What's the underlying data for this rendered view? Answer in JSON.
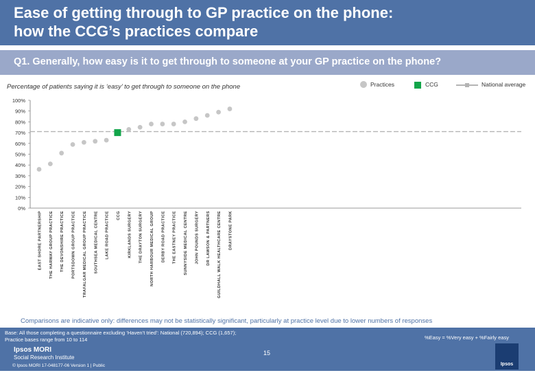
{
  "header": {
    "title_line1": "Ease of getting through to GP practice on the phone:",
    "title_line2": "how the CCG’s practices compare"
  },
  "question": "Q1. Generally, how easy is it to get through to someone at your GP practice on the phone?",
  "subtitle": "Percentage of patients saying it is ‘easy’ to get through to someone on the phone",
  "legend": {
    "practices": "Practices",
    "ccg": "CCG",
    "national": "National average"
  },
  "colors": {
    "practice": "#c6c6c6",
    "ccg": "#12a54a",
    "national": "#b4b4b4",
    "header": "#4f72a6"
  },
  "chart_data": {
    "type": "scatter",
    "y_ticks": [
      "100%",
      "90%",
      "80%",
      "70%",
      "60%",
      "50%",
      "40%",
      "30%",
      "20%",
      "10%",
      "0%"
    ],
    "ylim": [
      0,
      100
    ],
    "national_average": 71,
    "categories": [
      "EAST SHORE PARTNERSHIP",
      "THE HARWAY GROUP PRACTICE",
      "THE DEVONSHIRE PRACTICE",
      "PORTSDOWN GROUP PRACTICE",
      "TRAFALGAR MEDICAL GROUP PRACTICE",
      "SOUTHSEA MEDICAL CENTRE",
      "LAKE ROAD PRACTICE",
      "CCG",
      "KIRKLANDS SURGERY",
      "THE DRAYTON SURGERY",
      "NORTH HARBOUR MEDICAL GROUP",
      "DERBY ROAD PRACTICE",
      "THE EASTNEY PRACTICE",
      "SUNNYSIDE MEDICAL CENTRE",
      "JOHN POUNDS SURGERY",
      "DR LAWSON & PARTNERS",
      "GUILDHALL WALK HEALTHCARE CENTRE",
      "DRAYSTONE PARK"
    ],
    "values": [
      36,
      41,
      51,
      59,
      61,
      62,
      63,
      70,
      73,
      75,
      78,
      78,
      78,
      80,
      83,
      86,
      89,
      92
    ],
    "is_ccg": [
      false,
      false,
      false,
      false,
      false,
      false,
      false,
      true,
      false,
      false,
      false,
      false,
      false,
      false,
      false,
      false,
      false,
      false
    ]
  },
  "note": "Comparisons are indicative only: differences may not be statistically significant, particularly at practice level due to lower numbers of responses",
  "footer": {
    "base_line1": "Base: All those completing a questionnaire excluding ‘Haven’t tried’: National (720,894); CCG (1,657);",
    "base_line2": "Practice bases range from 10 to 114",
    "easy_def": "%Easy = %Very easy + %Fairly easy",
    "org_line1": "Ipsos MORI",
    "org_line2": "Social Research Institute",
    "copyright": "© Ipsos MORI     17-048177-06 Version 1 | Public",
    "page": "15",
    "logo": "Ipsos"
  }
}
